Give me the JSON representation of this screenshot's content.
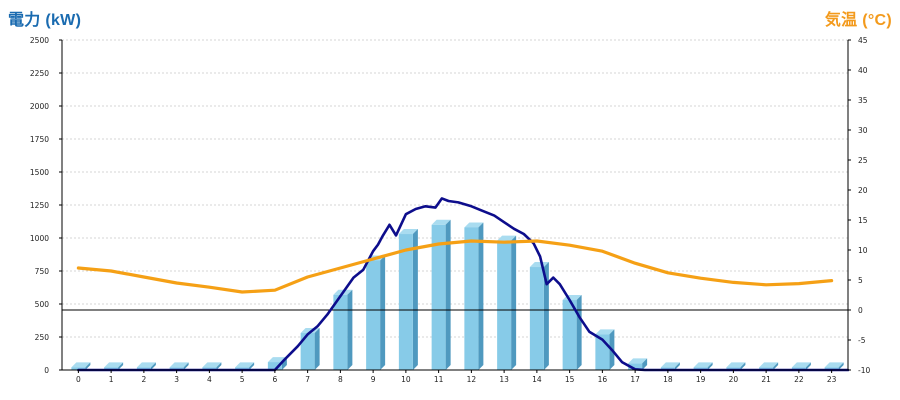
{
  "chart_data": {
    "type": "bar",
    "title_left": "電力 (kW)",
    "title_right": "気温 (°C)",
    "colors": {
      "title_left": "#1a6bb0",
      "title_right": "#f39a1c",
      "bar": "#87cbe8",
      "power_line": "#0d0d8c",
      "temp_line": "#f5a015"
    },
    "grid": true,
    "left_axis": {
      "min": 0,
      "max": 2500,
      "ticks": [
        0,
        250,
        500,
        750,
        1000,
        1250,
        1500,
        1750,
        2000,
        2250,
        2500
      ]
    },
    "right_axis": {
      "min": -10,
      "max": 45,
      "ticks": [
        -10,
        -5,
        0,
        5,
        10,
        15,
        20,
        25,
        30,
        35,
        40,
        45
      ]
    },
    "categories": [
      "0",
      "1",
      "2",
      "3",
      "4",
      "5",
      "6",
      "7",
      "8",
      "9",
      "10",
      "11",
      "12",
      "13",
      "14",
      "15",
      "16",
      "17",
      "18",
      "19",
      "20",
      "21",
      "22",
      "23"
    ],
    "series": [
      {
        "kind": "bar",
        "axis": "left",
        "values": [
          20,
          20,
          20,
          20,
          20,
          20,
          60,
          280,
          570,
          830,
          1030,
          1100,
          1080,
          980,
          780,
          530,
          270,
          50,
          20,
          20,
          20,
          20,
          20,
          20
        ]
      },
      {
        "kind": "line",
        "axis": "left",
        "x": [
          0,
          6,
          6.3,
          6.7,
          7,
          7.3,
          7.6,
          8,
          8.4,
          8.7,
          9,
          9.15,
          9.3,
          9.5,
          9.7,
          10,
          10.3,
          10.6,
          10.9,
          11.1,
          11.3,
          11.6,
          12,
          12.3,
          12.7,
          13,
          13.3,
          13.6,
          13.9,
          14.1,
          14.3,
          14.5,
          14.7,
          15,
          15.3,
          15.6,
          16,
          16.3,
          16.6,
          17,
          17.3,
          23.5
        ],
        "y": [
          0,
          0,
          80,
          180,
          270,
          330,
          420,
          560,
          700,
          760,
          900,
          950,
          1020,
          1100,
          1020,
          1180,
          1220,
          1240,
          1230,
          1300,
          1280,
          1270,
          1240,
          1210,
          1170,
          1120,
          1070,
          1030,
          960,
          860,
          650,
          700,
          650,
          530,
          400,
          290,
          230,
          150,
          60,
          5,
          0,
          0
        ]
      },
      {
        "kind": "line",
        "axis": "right",
        "x": [
          0,
          1,
          2,
          3,
          4,
          5,
          6,
          7,
          8,
          9,
          10,
          11,
          12,
          13,
          14,
          15,
          16,
          17,
          18,
          19,
          20,
          21,
          22,
          23
        ],
        "y": [
          7,
          6.5,
          5.5,
          4.5,
          3.8,
          3,
          3.3,
          5.5,
          7,
          8.5,
          10,
          11,
          11.5,
          11.3,
          11.5,
          10.8,
          9.8,
          7.8,
          6.2,
          5.3,
          4.6,
          4.2,
          4.4,
          4.9
        ]
      }
    ]
  }
}
